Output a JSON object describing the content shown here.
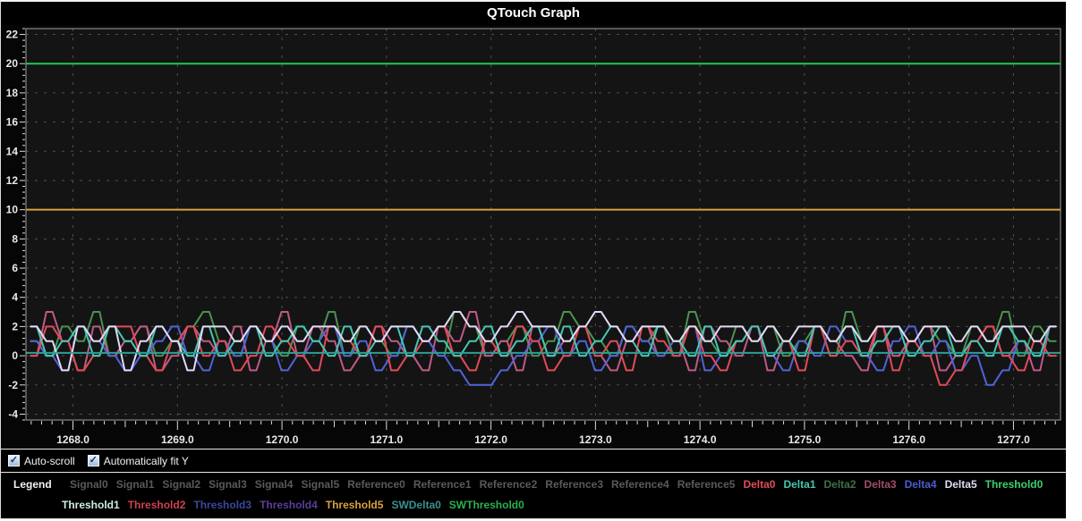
{
  "window": {
    "title": "QTouch Graph"
  },
  "controls": {
    "auto_scroll": {
      "label": "Auto-scroll",
      "checked": true
    },
    "fit_y": {
      "label": "Automatically fit Y",
      "checked": true
    }
  },
  "legend": {
    "title": "Legend",
    "rows": [
      [
        {
          "label": "Signal0",
          "color": "#5a5a5a"
        },
        {
          "label": "Signal1",
          "color": "#5a5a5a"
        },
        {
          "label": "Signal2",
          "color": "#5a5a5a"
        },
        {
          "label": "Signal3",
          "color": "#5a5a5a"
        },
        {
          "label": "Signal4",
          "color": "#5a5a5a"
        },
        {
          "label": "Signal5",
          "color": "#5a5a5a"
        },
        {
          "label": "Reference0",
          "color": "#5a5a5a"
        },
        {
          "label": "Reference1",
          "color": "#5a5a5a"
        },
        {
          "label": "Reference2",
          "color": "#5a5a5a"
        },
        {
          "label": "Reference3",
          "color": "#5a5a5a"
        },
        {
          "label": "Reference4",
          "color": "#5a5a5a"
        },
        {
          "label": "Reference5",
          "color": "#5a5a5a"
        },
        {
          "label": "Delta0",
          "color": "#e24b58"
        },
        {
          "label": "Delta1",
          "color": "#45c8b2"
        },
        {
          "label": "Delta2",
          "color": "#3f6f48"
        },
        {
          "label": "Delta3",
          "color": "#a34d6e"
        },
        {
          "label": "Delta4",
          "color": "#4a5cd0"
        },
        {
          "label": "Delta5",
          "color": "#e3d9f7"
        },
        {
          "label": "Threshold0",
          "color": "#3dcf6e"
        }
      ],
      [
        {
          "label": "Threshold1",
          "color": "#cdeedd"
        },
        {
          "label": "Threshold2",
          "color": "#cc4150"
        },
        {
          "label": "Threshold3",
          "color": "#39489e"
        },
        {
          "label": "Threshold4",
          "color": "#5d3d99"
        },
        {
          "label": "Threshold5",
          "color": "#d9a13c"
        },
        {
          "label": "SWDelta0",
          "color": "#3d8f8f"
        },
        {
          "label": "SWThreshold0",
          "color": "#29b04e"
        }
      ]
    ]
  },
  "chart_data": {
    "type": "line",
    "title": "QTouch Graph",
    "xlabel": "",
    "ylabel": "",
    "xlim": [
      1267.55,
      1277.45
    ],
    "ylim": [
      -4.4,
      22.4
    ],
    "x_tick_values": [
      1268,
      1269,
      1270,
      1271,
      1272,
      1273,
      1274,
      1275,
      1276,
      1277
    ],
    "x_tick_labels": [
      "1268.0",
      "1269.0",
      "1270.0",
      "1271.0",
      "1272.0",
      "1273.0",
      "1274.0",
      "1275.0",
      "1276.0",
      "1277.0"
    ],
    "y_tick_values": [
      -4,
      -2,
      0,
      2,
      4,
      6,
      8,
      10,
      12,
      14,
      16,
      18,
      20,
      22
    ],
    "y_tick_labels": [
      "-4",
      "-2",
      "0",
      "2",
      "4",
      "6",
      "8",
      "10",
      "12",
      "14",
      "16",
      "18",
      "20",
      "22"
    ],
    "x_minor_step": 0.1,
    "y_minor_step": 0.4,
    "grid": "dashed",
    "legend_position": "bottom",
    "plot_bg": "#141414",
    "grid_color": "#4f4f4f",
    "axis_text_color": "#e8e8e8",
    "tick_color": "#dcdcdc",
    "border_color": "#a0a0a0",
    "x_start": 1267.55,
    "x_step": 0.15,
    "series": [
      {
        "name": "Threshold0",
        "color": "#25c653",
        "constant": 20
      },
      {
        "name": "Threshold5",
        "color": "#d9a13c",
        "constant": 10
      },
      {
        "name": "Delta2",
        "color": "#4a9350",
        "levels": [
          1,
          0,
          2,
          1,
          3,
          0,
          1,
          2,
          0,
          1,
          2,
          3,
          1,
          0,
          2,
          1,
          0,
          2,
          1,
          3,
          0,
          2,
          1,
          0,
          2,
          1,
          0,
          3,
          2,
          0,
          1,
          2,
          0,
          1,
          3,
          2,
          1,
          0,
          2,
          1,
          2,
          0,
          3,
          1,
          0,
          2,
          1,
          2,
          0,
          1,
          2,
          0,
          3,
          1,
          2,
          0,
          1,
          2,
          1,
          0,
          2,
          1,
          3,
          0,
          2,
          1
        ]
      },
      {
        "name": "Delta3",
        "color": "#c05a86",
        "levels": [
          0,
          3,
          1,
          -1,
          2,
          0,
          1,
          2,
          -1,
          0,
          2,
          1,
          0,
          2,
          -1,
          1,
          3,
          0,
          2,
          1,
          -1,
          0,
          2,
          1,
          0,
          -1,
          2,
          1,
          3,
          0,
          1,
          -1,
          2,
          0,
          1,
          2,
          0,
          -1,
          1,
          2,
          0,
          1,
          -1,
          2,
          1,
          0,
          2,
          -1,
          1,
          0,
          2,
          1,
          0,
          -1,
          2,
          0,
          1,
          2,
          -1,
          0,
          1,
          2,
          0,
          1,
          -1,
          2
        ]
      },
      {
        "name": "Delta4",
        "color": "#5163d8",
        "levels": [
          1,
          0,
          -1,
          2,
          1,
          0,
          -1,
          0,
          1,
          2,
          0,
          -1,
          1,
          0,
          2,
          1,
          -1,
          0,
          1,
          2,
          0,
          1,
          -1,
          0,
          2,
          1,
          0,
          -1,
          -2,
          -2,
          -1,
          0,
          1,
          2,
          0,
          1,
          -1,
          0,
          2,
          1,
          0,
          1,
          2,
          -1,
          0,
          1,
          2,
          0,
          -1,
          1,
          0,
          2,
          1,
          0,
          -1,
          1,
          2,
          0,
          1,
          -1,
          0,
          -2,
          -1,
          1,
          0,
          2
        ]
      },
      {
        "name": "Delta0",
        "color": "#e24b58",
        "levels": [
          0,
          2,
          1,
          -1,
          0,
          2,
          2,
          0,
          -1,
          1,
          2,
          0,
          1,
          -1,
          0,
          2,
          1,
          0,
          -1,
          2,
          1,
          0,
          2,
          -1,
          0,
          1,
          2,
          0,
          -1,
          1,
          0,
          2,
          1,
          -1,
          0,
          2,
          0,
          1,
          -1,
          2,
          1,
          0,
          2,
          0,
          -1,
          1,
          2,
          0,
          1,
          -1,
          2,
          0,
          1,
          0,
          2,
          -1,
          1,
          0,
          -2,
          -1,
          1,
          2,
          0,
          -1,
          1,
          0
        ]
      },
      {
        "name": "Delta1",
        "color": "#45c8b2",
        "levels": [
          2,
          0,
          1,
          2,
          0,
          2,
          1,
          0,
          2,
          1,
          0,
          2,
          0,
          1,
          2,
          0,
          1,
          2,
          1,
          0,
          2,
          0,
          1,
          2,
          0,
          2,
          1,
          0,
          1,
          2,
          0,
          1,
          2,
          0,
          2,
          0,
          1,
          2,
          1,
          0,
          2,
          1,
          0,
          2,
          0,
          1,
          2,
          0,
          1,
          0,
          2,
          1,
          2,
          0,
          1,
          2,
          0,
          1,
          2,
          0,
          1,
          0,
          2,
          1,
          0,
          2
        ]
      },
      {
        "name": "Delta5",
        "color": "#e3d9f7",
        "levels": [
          2,
          1,
          -1,
          2,
          1,
          2,
          -1,
          1,
          2,
          1,
          -1,
          2,
          2,
          1,
          2,
          1,
          2,
          1,
          2,
          2,
          1,
          2,
          1,
          2,
          2,
          1,
          2,
          3,
          2,
          1,
          2,
          3,
          2,
          2,
          1,
          2,
          3,
          2,
          1,
          2,
          2,
          1,
          2,
          1,
          2,
          2,
          1,
          2,
          1,
          2,
          2,
          1,
          2,
          1,
          2,
          2,
          1,
          2,
          2,
          1,
          2,
          1,
          2,
          2,
          1,
          2
        ]
      },
      {
        "name": "SWDelta0",
        "color": "#2f9e96",
        "constant": 0.2
      }
    ]
  }
}
